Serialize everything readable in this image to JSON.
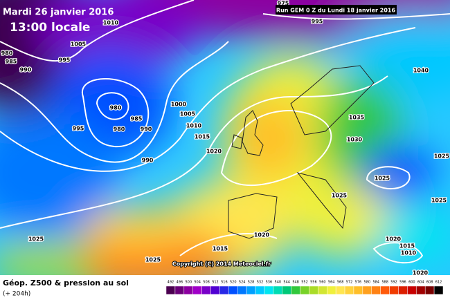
{
  "header": {
    "date": "Mardi 26 janvier 2016",
    "local_time": "13:00 locale",
    "run_info": "Run GEM 0 Z du Lundi 18 janvier 2016"
  },
  "copyright": "Copyright (C) 2014 Meteociel.fr",
  "footer": {
    "title": "Géop. Z500 & pression au sol",
    "lead_time": "(+ 204h)"
  },
  "isobar_labels": [
    980,
    985,
    990,
    995,
    1005,
    1010,
    980,
    985,
    980,
    995,
    990,
    990,
    1000,
    1005,
    1010,
    1015,
    1020,
    995,
    975,
    1040,
    1035,
    1030,
    1025,
    1025,
    1025,
    1025,
    1020,
    1015,
    1025,
    1025,
    1020,
    1015,
    1010,
    1020
  ],
  "scale": {
    "labels": [
      492,
      496,
      500,
      504,
      508,
      512,
      516,
      520,
      524,
      528,
      532,
      536,
      540,
      544,
      548,
      552,
      556,
      560,
      564,
      568,
      572,
      576,
      580,
      584,
      588,
      592,
      596,
      600,
      604,
      608,
      612
    ],
    "colors": [
      "#4b0050",
      "#6a0078",
      "#8c00a0",
      "#a000c8",
      "#7800c8",
      "#5000d2",
      "#2828e6",
      "#0050ff",
      "#0078ff",
      "#00a0ff",
      "#00c8ff",
      "#00e6f0",
      "#00dcb4",
      "#00c878",
      "#32c83c",
      "#78d228",
      "#aadc28",
      "#d2e632",
      "#f0f03c",
      "#ffe650",
      "#ffd23c",
      "#ffbe28",
      "#ffa01e",
      "#ff8214",
      "#ff5a0a",
      "#f03c00",
      "#dc1e00",
      "#c80000",
      "#a00000",
      "#780000",
      "#000000"
    ]
  }
}
